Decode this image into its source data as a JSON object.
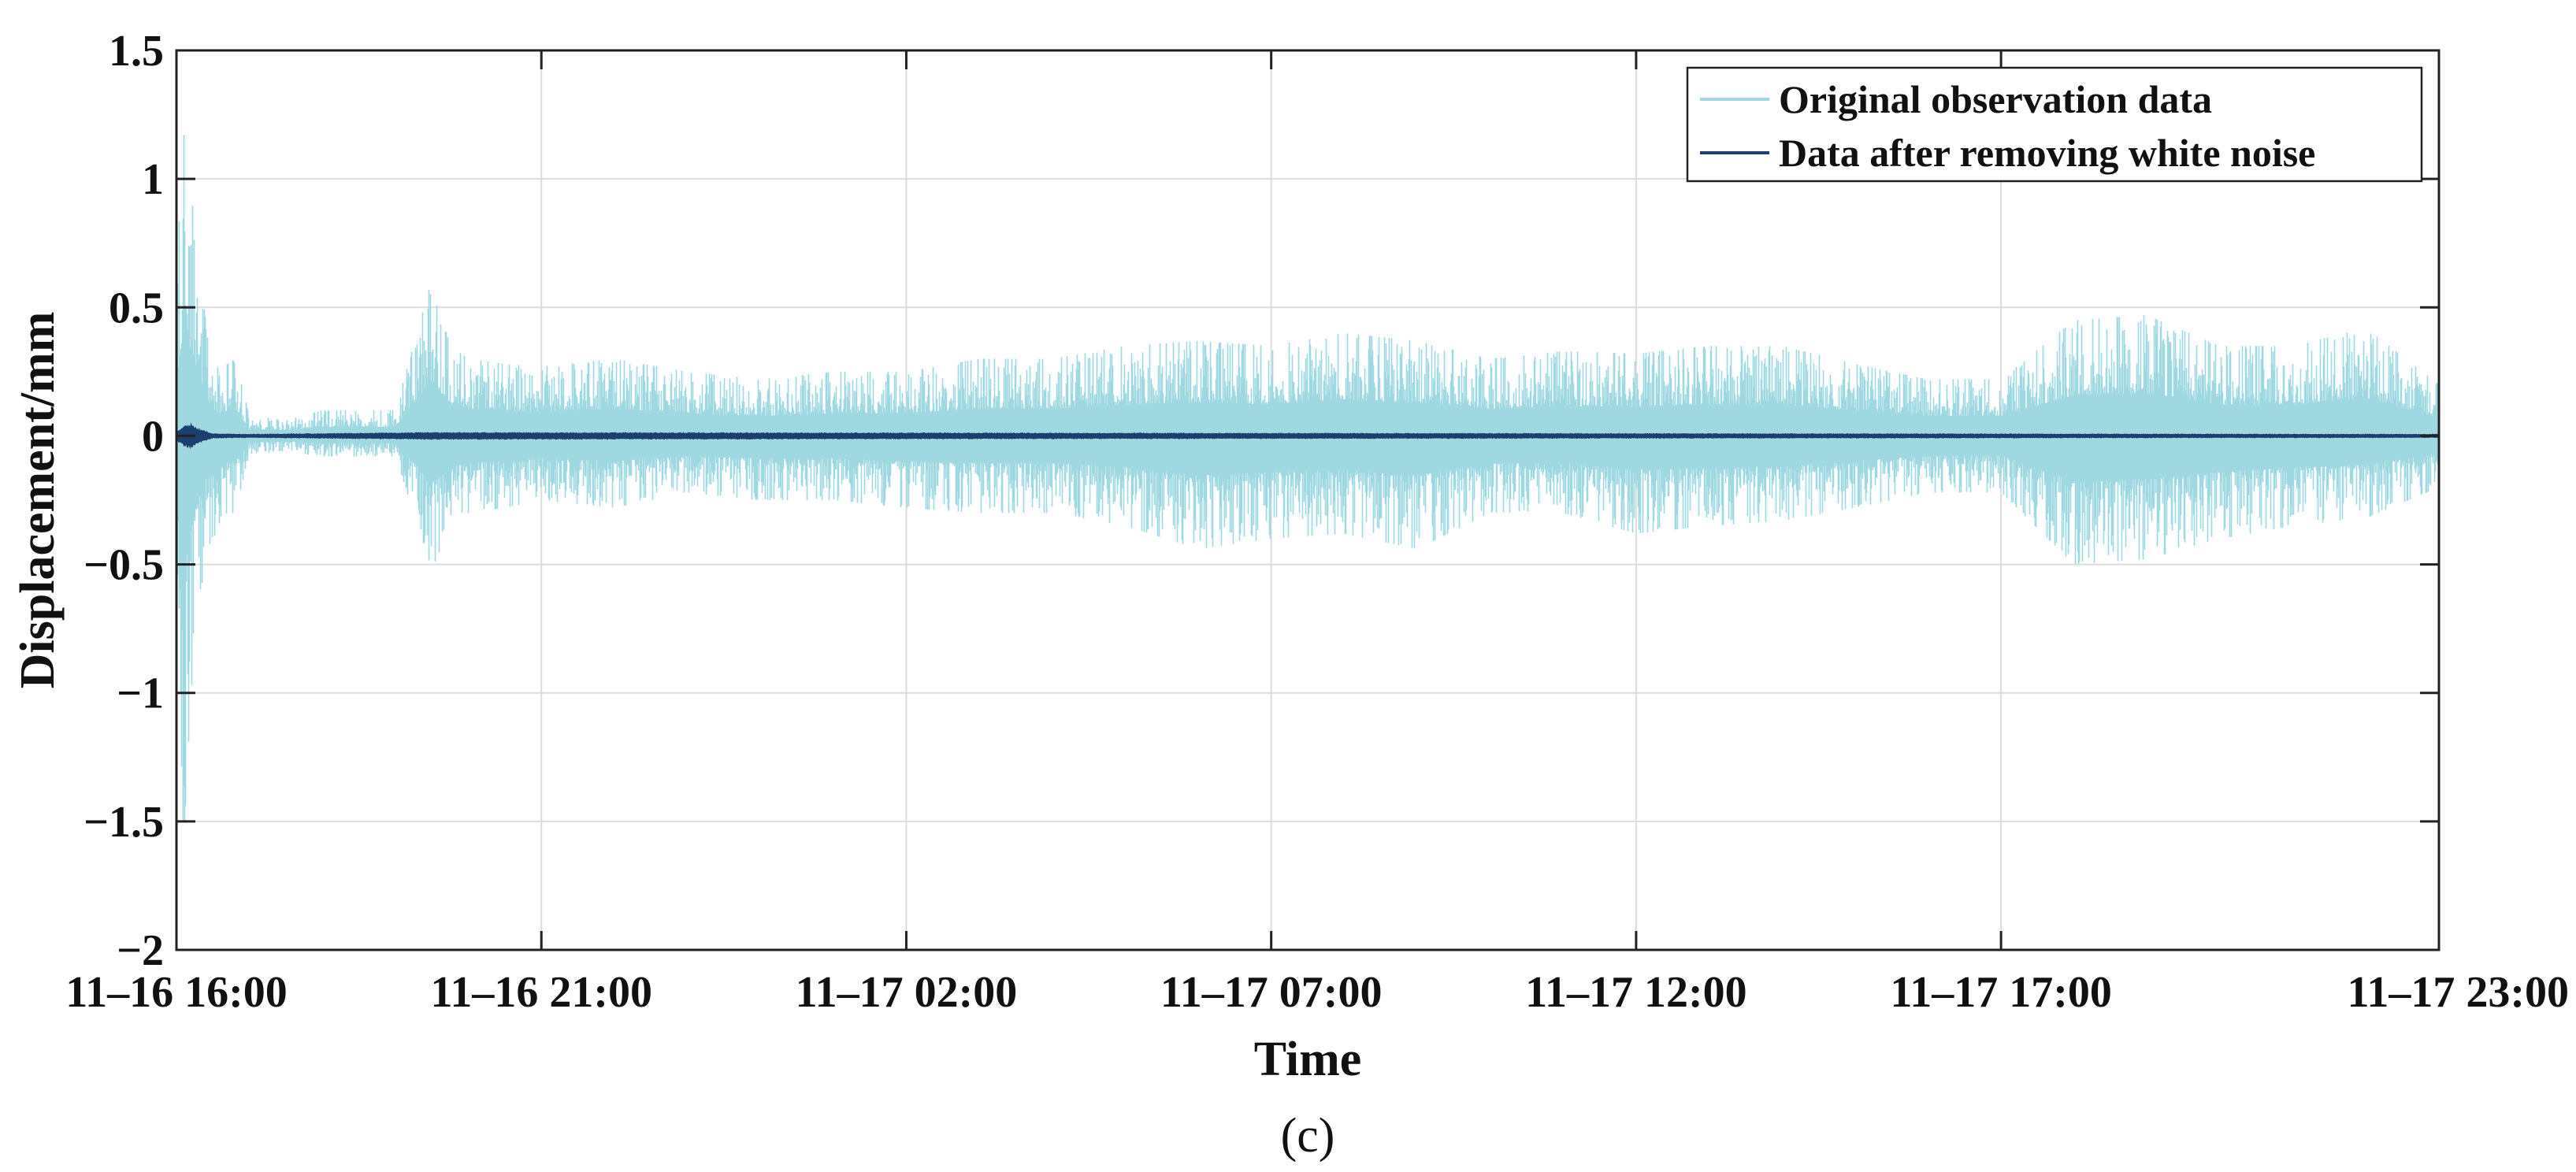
{
  "chart_data": {
    "type": "line",
    "title": "",
    "xlabel": "Time",
    "ylabel": "Displacement/mm",
    "panel_label": "(c)",
    "xlim": [
      "11-16 16:00",
      "11-17 23:00"
    ],
    "ylim": [
      -2,
      1.5
    ],
    "x_ticks": [
      "11-16 16:00",
      "11-16 21:00",
      "11-17 02:00",
      "11-17 07:00",
      "11-17 12:00",
      "11-17 17:00",
      "11-17 23:00"
    ],
    "x_tick_labels": [
      "11–16 16:00",
      "11–16 21:00",
      "11–17 02:00",
      "11–17 07:00",
      "11–17 12:00",
      "11–17 17:00",
      "11–17 23:00"
    ],
    "y_ticks": [
      -2,
      -1.5,
      -1,
      -0.5,
      0,
      0.5,
      1,
      1.5
    ],
    "y_tick_labels": [
      "−2",
      "−1.5",
      "−1",
      "−0.5",
      "0",
      "0.5",
      "1",
      "1.5"
    ],
    "grid": true,
    "legend_position": "top-right",
    "series": [
      {
        "name": "Original observation data",
        "color": "#9fd8e0",
        "x": [
          "11-16 16:00",
          "11-16 16:06",
          "11-16 16:12",
          "11-16 16:18",
          "11-16 16:24",
          "11-16 16:30",
          "11-16 16:36",
          "11-16 16:42",
          "11-16 16:48",
          "11-16 17:00",
          "11-16 17:30",
          "11-16 18:00",
          "11-16 18:30",
          "11-16 19:00",
          "11-16 19:30",
          "11-16 19:45",
          "11-16 20:00",
          "11-16 20:30",
          "11-16 21:00",
          "11-16 22:00",
          "11-16 23:00",
          "11-17 00:00",
          "11-17 01:00",
          "11-17 02:00",
          "11-17 03:00",
          "11-17 04:00",
          "11-17 05:00",
          "11-17 06:00",
          "11-17 07:00",
          "11-17 08:00",
          "11-17 09:00",
          "11-17 10:00",
          "11-17 11:00",
          "11-17 12:00",
          "11-17 13:00",
          "11-17 14:00",
          "11-17 15:00",
          "11-17 16:00",
          "11-17 17:00",
          "11-17 18:00",
          "11-17 19:00",
          "11-17 20:00",
          "11-17 21:00",
          "11-17 22:00",
          "11-17 23:00"
        ],
        "y_max": [
          0.6,
          1.22,
          0.95,
          0.7,
          0.45,
          0.3,
          0.25,
          0.28,
          0.3,
          0.08,
          0.06,
          0.1,
          0.1,
          0.1,
          0.61,
          0.35,
          0.3,
          0.28,
          0.27,
          0.3,
          0.25,
          0.22,
          0.25,
          0.25,
          0.3,
          0.3,
          0.35,
          0.37,
          0.35,
          0.4,
          0.37,
          0.3,
          0.33,
          0.32,
          0.35,
          0.35,
          0.28,
          0.22,
          0.22,
          0.45,
          0.47,
          0.35,
          0.35,
          0.42,
          0.2
        ],
        "y_min": [
          -0.6,
          -1.58,
          -1.0,
          -0.7,
          -0.45,
          -0.4,
          -0.35,
          -0.3,
          -0.3,
          -0.07,
          -0.06,
          -0.08,
          -0.08,
          -0.08,
          -0.52,
          -0.35,
          -0.3,
          -0.28,
          -0.25,
          -0.28,
          -0.22,
          -0.25,
          -0.25,
          -0.28,
          -0.3,
          -0.3,
          -0.35,
          -0.44,
          -0.4,
          -0.38,
          -0.44,
          -0.3,
          -0.3,
          -0.38,
          -0.35,
          -0.33,
          -0.28,
          -0.22,
          -0.22,
          -0.5,
          -0.48,
          -0.4,
          -0.35,
          -0.32,
          -0.2
        ]
      },
      {
        "name": "Data after removing  white noise",
        "color": "#1d3f6e",
        "x": [
          "11-16 16:00",
          "11-16 16:06",
          "11-16 16:12",
          "11-16 16:18",
          "11-16 16:24",
          "11-16 16:30",
          "11-16 17:00",
          "11-16 19:30",
          "11-17 23:00"
        ],
        "y_max": [
          0.02,
          0.04,
          0.05,
          0.03,
          0.02,
          0.01,
          0.008,
          0.015,
          0.008
        ],
        "y_min": [
          -0.02,
          -0.04,
          -0.05,
          -0.03,
          -0.02,
          -0.01,
          -0.008,
          -0.015,
          -0.008
        ]
      }
    ]
  }
}
